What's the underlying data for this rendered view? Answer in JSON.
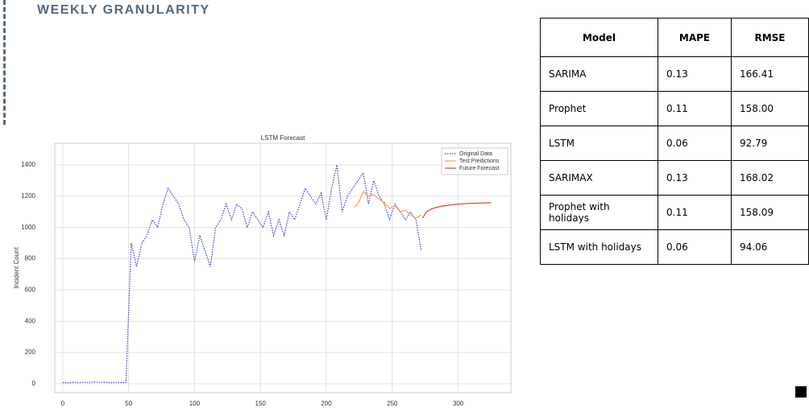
{
  "header": {
    "title": "WEEKLY GRANULARITY"
  },
  "chart_data": {
    "type": "line",
    "title": "LSTM Forecast",
    "y_label": "Incident Count",
    "xlim": [
      -6,
      340
    ],
    "ylim": [
      -57,
      1539
    ],
    "xticks": [
      0,
      50,
      100,
      150,
      200,
      250,
      300
    ],
    "yticks": [
      0,
      200,
      400,
      600,
      800,
      1000,
      1200,
      1400
    ],
    "grid": true,
    "legend": "upper right",
    "series": [
      {
        "name": "Original Data",
        "color": "#3a3adb",
        "linestyle": "dotted",
        "x": [
          0,
          4,
          8,
          12,
          16,
          20,
          24,
          28,
          32,
          36,
          40,
          44,
          48,
          52,
          56,
          60,
          64,
          68,
          72,
          76,
          80,
          84,
          88,
          92,
          96,
          100,
          104,
          108,
          112,
          116,
          120,
          124,
          128,
          132,
          136,
          140,
          144,
          148,
          152,
          156,
          160,
          164,
          168,
          172,
          176,
          180,
          184,
          188,
          192,
          196,
          200,
          204,
          208,
          212,
          216,
          220,
          224,
          228,
          232,
          236,
          240,
          244,
          248,
          252,
          256,
          260,
          264,
          268,
          272
        ],
        "values": [
          8,
          6,
          9,
          7,
          10,
          8,
          12,
          9,
          11,
          7,
          9,
          8,
          8,
          900,
          750,
          900,
          950,
          1050,
          1000,
          1150,
          1250,
          1200,
          1150,
          1050,
          1000,
          780,
          950,
          850,
          750,
          1000,
          1050,
          1150,
          1050,
          1150,
          1120,
          1000,
          1100,
          1050,
          1000,
          1100,
          950,
          1050,
          950,
          1100,
          1050,
          1150,
          1250,
          1200,
          1150,
          1220,
          1050,
          1250,
          1400,
          1100,
          1200,
          1250,
          1300,
          1350,
          1150,
          1300,
          1200,
          1150,
          1050,
          1150,
          1100,
          1050,
          1100,
          1050,
          850
        ]
      },
      {
        "name": "Test Predictions",
        "color": "#ffa040",
        "linestyle": "solid",
        "x": [
          221,
          224,
          228,
          232,
          236,
          240,
          244,
          248,
          252,
          256,
          260,
          264,
          268,
          272
        ],
        "values": [
          1130,
          1150,
          1230,
          1200,
          1210,
          1180,
          1160,
          1120,
          1140,
          1100,
          1110,
          1080,
          1060,
          1080
        ]
      },
      {
        "name": "Future Forecast",
        "color": "#e8392b",
        "linestyle": "solid",
        "x": [
          273,
          276,
          280,
          284,
          290,
          300,
          310,
          325
        ],
        "values": [
          1060,
          1100,
          1120,
          1130,
          1140,
          1150,
          1155,
          1158
        ]
      }
    ]
  },
  "table": {
    "columns": [
      "Model",
      "MAPE",
      "RMSE"
    ],
    "rows": [
      [
        "SARIMA",
        "0.13",
        "166.41"
      ],
      [
        "Prophet",
        "0.11",
        "158.00"
      ],
      [
        "LSTM",
        "0.06",
        "92.79"
      ],
      [
        "SARIMAX",
        "0.13",
        "168.02"
      ],
      [
        "Prophet with holidays",
        "0.11",
        "158.09"
      ],
      [
        "LSTM with holidays",
        "0.06",
        "94.06"
      ]
    ]
  }
}
